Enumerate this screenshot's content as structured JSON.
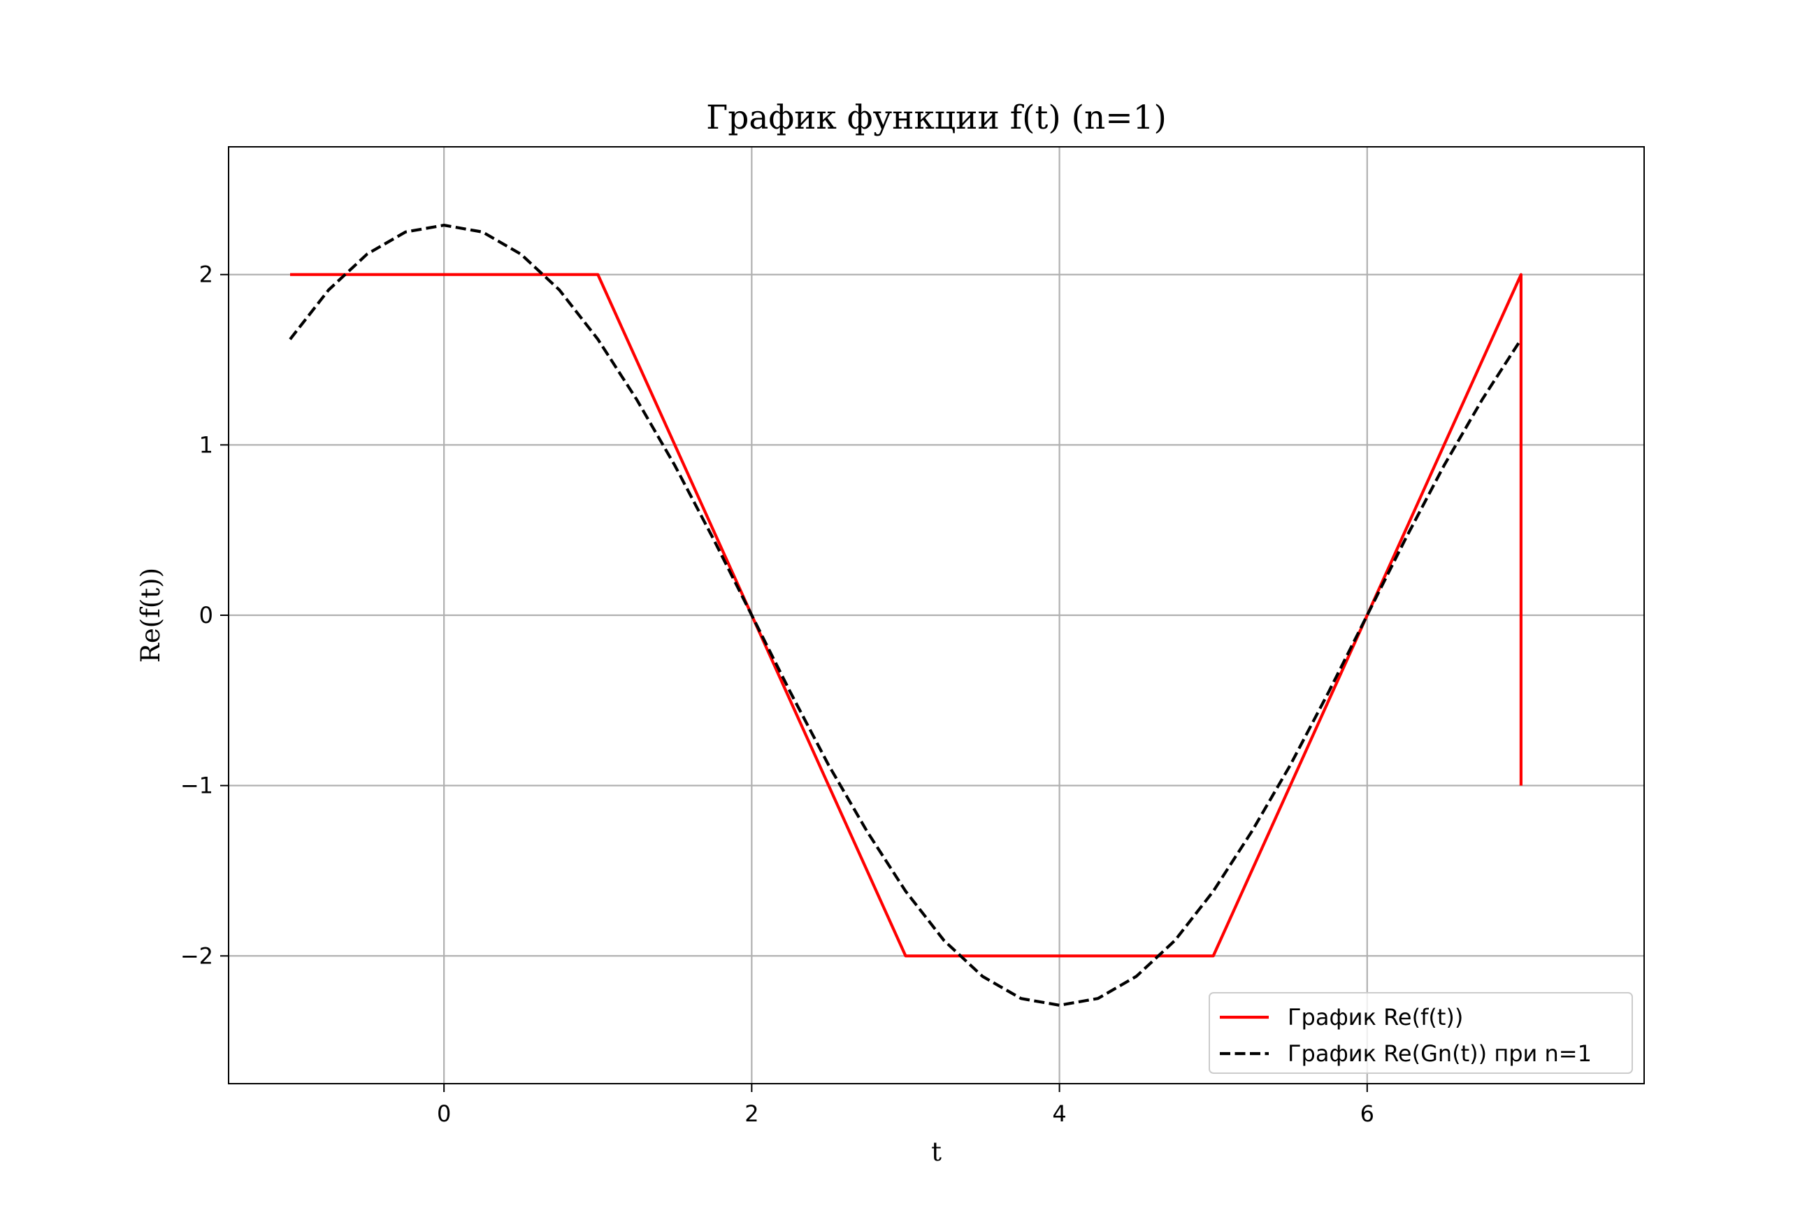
{
  "chart_data": {
    "type": "line",
    "title": "График функции f(t) (n=1)",
    "xlabel": "t",
    "ylabel": "Re(f(t))",
    "xlim": [
      -1.4,
      7.8
    ],
    "ylim": [
      -2.75,
      2.75
    ],
    "xticks": [
      0,
      2,
      4,
      6
    ],
    "yticks": [
      -2,
      -1,
      0,
      1,
      2
    ],
    "xtick_labels": [
      "0",
      "2",
      "4",
      "6"
    ],
    "ytick_labels": [
      "−2",
      "−1",
      "0",
      "1",
      "2"
    ],
    "grid": true,
    "legend_position": "lower-right",
    "series": [
      {
        "name": "График Re(f(t))",
        "color": "#ff0000",
        "style": "solid",
        "x": [
          -1,
          1,
          3,
          5,
          7,
          7
        ],
        "y": [
          2,
          2,
          -2,
          -2,
          2,
          -1
        ]
      },
      {
        "name": "График Re(Gn(t)) при n=1",
        "color": "#000000",
        "style": "dashed",
        "x": [
          -1,
          -0.75,
          -0.5,
          -0.25,
          0,
          0.25,
          0.5,
          0.75,
          1,
          1.25,
          1.5,
          1.75,
          2,
          2.25,
          2.5,
          2.75,
          3,
          3.25,
          3.5,
          3.75,
          4,
          4.25,
          4.5,
          4.75,
          5,
          5.25,
          5.5,
          5.75,
          6,
          6.25,
          6.5,
          6.75,
          7
        ],
        "y": [
          1.62,
          1.91,
          2.12,
          2.25,
          2.29,
          2.25,
          2.12,
          1.91,
          1.62,
          1.27,
          0.88,
          0.45,
          0,
          -0.45,
          -0.88,
          -1.27,
          -1.62,
          -1.91,
          -2.12,
          -2.25,
          -2.29,
          -2.25,
          -2.12,
          -1.91,
          -1.62,
          -1.27,
          -0.88,
          -0.45,
          0,
          0.45,
          0.88,
          1.27,
          1.62
        ]
      }
    ]
  }
}
